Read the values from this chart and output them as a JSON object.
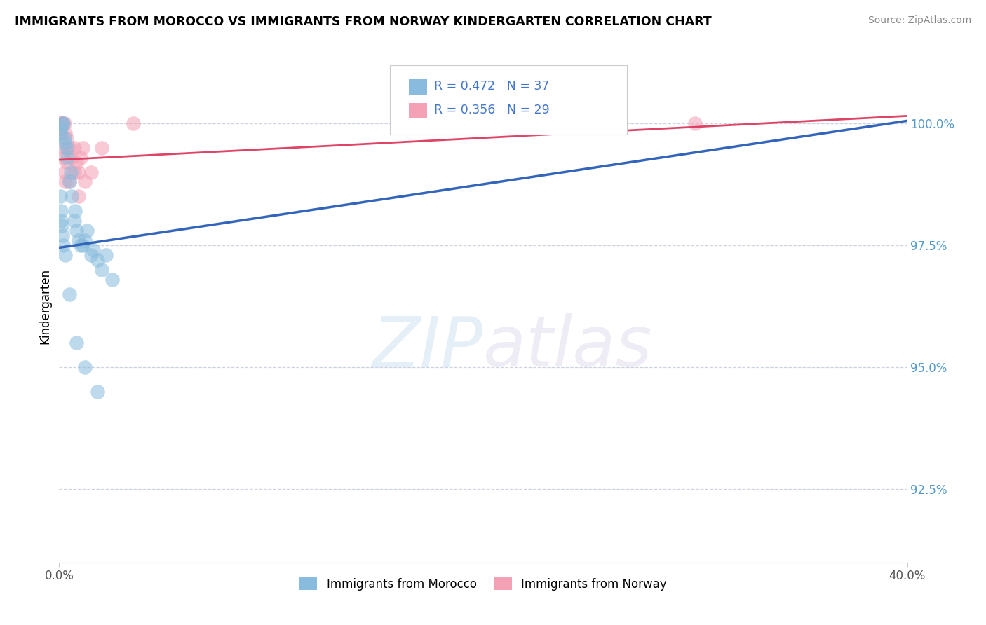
{
  "title": "IMMIGRANTS FROM MOROCCO VS IMMIGRANTS FROM NORWAY KINDERGARTEN CORRELATION CHART",
  "ylabel": "Kindergarten",
  "source": "Source: ZipAtlas.com",
  "watermark_zip": "ZIP",
  "watermark_atlas": "atlas",
  "xlim": [
    0.0,
    40.0
  ],
  "ylim": [
    91.0,
    101.5
  ],
  "yticks": [
    92.5,
    95.0,
    97.5,
    100.0
  ],
  "ytick_labels": [
    "92.5%",
    "95.0%",
    "97.5%",
    "100.0%"
  ],
  "morocco_R": 0.472,
  "morocco_N": 37,
  "norway_R": 0.356,
  "norway_N": 29,
  "morocco_color": "#88bbdd",
  "norway_color": "#f4a0b5",
  "morocco_line_color": "#3366bb",
  "norway_line_color": "#dd4466",
  "morocco_trend_x0": 0.0,
  "morocco_trend_y0": 97.45,
  "morocco_trend_x1": 40.0,
  "morocco_trend_y1": 100.05,
  "norway_trend_x0": 0.0,
  "norway_trend_y0": 99.25,
  "norway_trend_x1": 40.0,
  "norway_trend_y1": 100.15,
  "morocco_scatter_x": [
    0.05,
    0.1,
    0.15,
    0.2,
    0.25,
    0.3,
    0.35,
    0.4,
    0.5,
    0.55,
    0.6,
    0.7,
    0.75,
    0.8,
    0.9,
    1.0,
    1.1,
    1.2,
    1.3,
    1.5,
    1.6,
    1.8,
    2.0,
    2.2,
    2.5,
    0.05,
    0.08,
    0.1,
    0.12,
    0.15,
    0.2,
    0.3,
    0.5,
    0.8,
    1.2,
    1.8,
    20.5
  ],
  "morocco_scatter_y": [
    99.8,
    99.9,
    100.0,
    100.0,
    99.7,
    99.6,
    99.5,
    99.3,
    98.8,
    99.0,
    98.5,
    98.0,
    98.2,
    97.8,
    97.6,
    97.5,
    97.5,
    97.6,
    97.8,
    97.3,
    97.4,
    97.2,
    97.0,
    97.3,
    96.8,
    98.5,
    98.2,
    98.0,
    97.9,
    97.7,
    97.5,
    97.3,
    96.5,
    95.5,
    95.0,
    94.5,
    100.0
  ],
  "norway_scatter_x": [
    0.05,
    0.1,
    0.15,
    0.2,
    0.25,
    0.3,
    0.35,
    0.4,
    0.5,
    0.6,
    0.7,
    0.8,
    0.9,
    1.0,
    1.1,
    1.2,
    1.5,
    2.0,
    3.5,
    0.08,
    0.15,
    0.2,
    0.25,
    0.3,
    0.4,
    0.5,
    0.7,
    0.9,
    30.0
  ],
  "norway_scatter_y": [
    100.0,
    100.0,
    100.0,
    100.0,
    100.0,
    99.8,
    99.7,
    99.5,
    99.5,
    99.3,
    99.5,
    99.2,
    99.0,
    99.3,
    99.5,
    98.8,
    99.0,
    99.5,
    100.0,
    99.8,
    99.5,
    99.3,
    99.0,
    98.8,
    99.2,
    98.8,
    99.0,
    98.5,
    100.0
  ],
  "legend_text_color": "#4477cc",
  "ytick_color": "#5599cc",
  "xtick_color": "#555555"
}
